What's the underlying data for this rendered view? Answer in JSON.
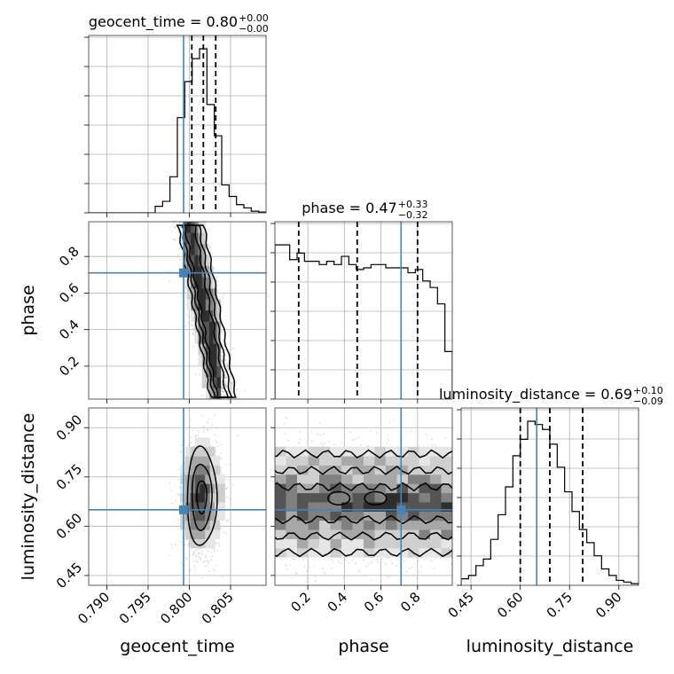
{
  "chart_data": {
    "type": "corner",
    "parameters": [
      {
        "name": "geocent_time",
        "label": "geocent_time",
        "range": [
          0.7878,
          0.8093
        ],
        "ticks": [
          0.79,
          0.795,
          0.8,
          0.805
        ],
        "tick_labels": [
          "0.790",
          "0.795",
          "0.800",
          "0.805"
        ],
        "truth": 0.7993,
        "quantiles": [
          0.8003,
          0.8017,
          0.8032
        ],
        "title_main": "geocent_time = 0.80",
        "title_sup": "+0.00",
        "title_sub": "−0.00",
        "hist": [
          0,
          0,
          0,
          0,
          0,
          0,
          0,
          0,
          0,
          0.04,
          0.07,
          0.22,
          0.58,
          0.8,
          0.94,
          1.0,
          0.66,
          0.47,
          0.17,
          0.1,
          0.05,
          0.03,
          0.01,
          0.005
        ]
      },
      {
        "name": "phase",
        "label": "phase",
        "range": [
          0.02,
          0.99
        ],
        "ticks": [
          0.2,
          0.4,
          0.6,
          0.8
        ],
        "tick_labels": [
          "0.2",
          "0.4",
          "0.6",
          "0.8"
        ],
        "truth": 0.71,
        "quantiles": [
          0.15,
          0.47,
          0.8
        ],
        "title_main": "phase = 0.47",
        "title_sup": "+0.33",
        "title_sub": "−0.32",
        "hist": [
          0.94,
          0.94,
          0.85,
          0.89,
          0.84,
          0.84,
          0.82,
          0.84,
          0.82,
          0.87,
          0.82,
          0.79,
          0.8,
          0.82,
          0.82,
          0.8,
          0.8,
          0.8,
          0.77,
          0.79,
          0.72,
          0.68,
          0.58,
          0.29
        ]
      },
      {
        "name": "luminosity_distance",
        "label": "luminosity_distance",
        "range": [
          0.42,
          0.96
        ],
        "ticks": [
          0.45,
          0.6,
          0.75,
          0.9
        ],
        "tick_labels": [
          "0.45",
          "0.60",
          "0.75",
          "0.90"
        ],
        "truth": 0.65,
        "quantiles": [
          0.6,
          0.69,
          0.79
        ],
        "title_main": "luminosity_distance = 0.69",
        "title_sup": "+0.10",
        "title_sub": "−0.09",
        "hist": [
          0.04,
          0.06,
          0.12,
          0.16,
          0.28,
          0.43,
          0.6,
          0.79,
          0.89,
          1.0,
          0.98,
          0.95,
          0.86,
          0.72,
          0.57,
          0.45,
          0.34,
          0.26,
          0.18,
          0.1,
          0.06,
          0.03,
          0.02,
          0.01
        ]
      }
    ],
    "pairs": [
      {
        "x": "geocent_time",
        "y": "phase",
        "ranges_x": [
          0.7998,
          0.80165,
          0.80345
        ],
        "ranges_y": [
          0.02,
          0.99
        ],
        "slope": -80,
        "x_at_y": [
          0.55,
          0.8015
        ]
      },
      {
        "x": "geocent_time",
        "y": "luminosity_distance",
        "mean": [
          0.8015,
          0.69
        ]
      },
      {
        "x": "phase",
        "y": "luminosity_distance",
        "mean": [
          0.5,
          0.66
        ]
      }
    ],
    "grid": true,
    "truth_color": "#4682b4"
  }
}
